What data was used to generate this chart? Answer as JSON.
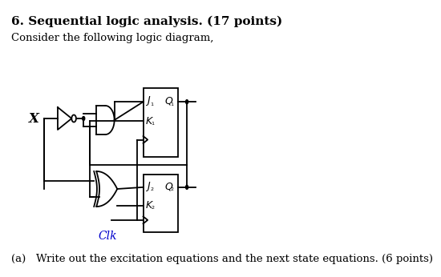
{
  "title": "6. Sequential logic analysis. (17 points)",
  "subtitle": "Consider the following logic diagram,",
  "footer": "(a)   Write out the excitation equations and the next state equations. (6 points)",
  "bg_color": "#ffffff",
  "text_color": "#000000",
  "title_fontsize": 11,
  "subtitle_fontsize": 9.5,
  "footer_fontsize": 9.5,
  "clk_color": "#0000cc"
}
